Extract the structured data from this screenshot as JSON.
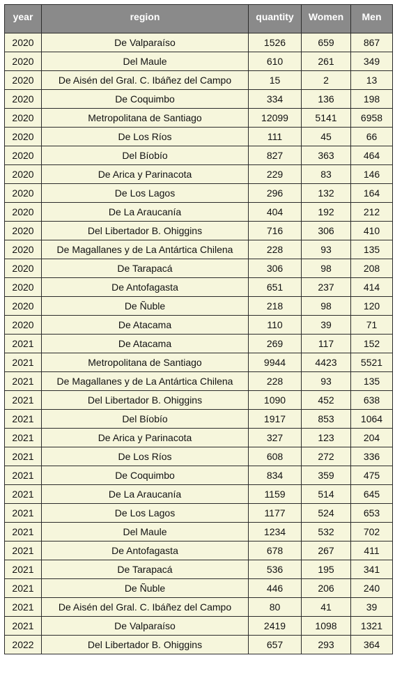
{
  "table": {
    "columns": [
      "year",
      "region",
      "quantity",
      "Women",
      "Men"
    ],
    "rows": [
      [
        "2020",
        "De Valparaíso",
        "1526",
        "659",
        "867"
      ],
      [
        "2020",
        "Del Maule",
        "610",
        "261",
        "349"
      ],
      [
        "2020",
        "De Aisén del Gral. C. Ibáñez del Campo",
        "15",
        "2",
        "13"
      ],
      [
        "2020",
        "De Coquimbo",
        "334",
        "136",
        "198"
      ],
      [
        "2020",
        "Metropolitana de Santiago",
        "12099",
        "5141",
        "6958"
      ],
      [
        "2020",
        "De Los Ríos",
        "111",
        "45",
        "66"
      ],
      [
        "2020",
        "Del Bíobío",
        "827",
        "363",
        "464"
      ],
      [
        "2020",
        "De Arica y Parinacota",
        "229",
        "83",
        "146"
      ],
      [
        "2020",
        "De Los Lagos",
        "296",
        "132",
        "164"
      ],
      [
        "2020",
        "De La Araucanía",
        "404",
        "192",
        "212"
      ],
      [
        "2020",
        "Del Libertador B. Ohiggins",
        "716",
        "306",
        "410"
      ],
      [
        "2020",
        "De Magallanes y de La Antártica Chilena",
        "228",
        "93",
        "135"
      ],
      [
        "2020",
        "De Tarapacá",
        "306",
        "98",
        "208"
      ],
      [
        "2020",
        "De Antofagasta",
        "651",
        "237",
        "414"
      ],
      [
        "2020",
        "De Ñuble",
        "218",
        "98",
        "120"
      ],
      [
        "2020",
        "De Atacama",
        "110",
        "39",
        "71"
      ],
      [
        "2021",
        "De Atacama",
        "269",
        "117",
        "152"
      ],
      [
        "2021",
        "Metropolitana de Santiago",
        "9944",
        "4423",
        "5521"
      ],
      [
        "2021",
        "De Magallanes y de La Antártica Chilena",
        "228",
        "93",
        "135"
      ],
      [
        "2021",
        "Del Libertador B. Ohiggins",
        "1090",
        "452",
        "638"
      ],
      [
        "2021",
        "Del Bíobío",
        "1917",
        "853",
        "1064"
      ],
      [
        "2021",
        "De Arica y Parinacota",
        "327",
        "123",
        "204"
      ],
      [
        "2021",
        "De Los Ríos",
        "608",
        "272",
        "336"
      ],
      [
        "2021",
        "De Coquimbo",
        "834",
        "359",
        "475"
      ],
      [
        "2021",
        "De La Araucanía",
        "1159",
        "514",
        "645"
      ],
      [
        "2021",
        "De Los Lagos",
        "1177",
        "524",
        "653"
      ],
      [
        "2021",
        "Del Maule",
        "1234",
        "532",
        "702"
      ],
      [
        "2021",
        "De Antofagasta",
        "678",
        "267",
        "411"
      ],
      [
        "2021",
        "De Tarapacá",
        "536",
        "195",
        "341"
      ],
      [
        "2021",
        "De Ñuble",
        "446",
        "206",
        "240"
      ],
      [
        "2021",
        "De Aisén del Gral. C. Ibáñez del Campo",
        "80",
        "41",
        "39"
      ],
      [
        "2021",
        "De Valparaíso",
        "2419",
        "1098",
        "1321"
      ],
      [
        "2022",
        "Del Libertador B. Ohiggins",
        "657",
        "293",
        "364"
      ]
    ]
  },
  "colors": {
    "header_bg": "#8a8a8a",
    "header_text": "#ffffff",
    "cell_bg": "#f6f6dc",
    "border": "#2b2b2b"
  }
}
